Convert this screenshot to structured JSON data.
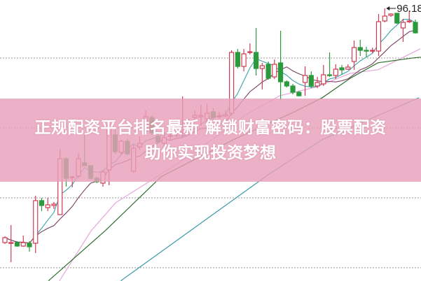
{
  "chart_data": {
    "type": "candlestick",
    "title": "",
    "xlabel": "",
    "ylabel": "",
    "ylim": [
      57.18,
      97.38
    ],
    "grid": {
      "on": true,
      "style": "dotted",
      "horizontal_values": [
        89.08,
        79.08,
        69.08,
        59.08
      ]
    },
    "colors": {
      "up": "#d23a52",
      "down": "#2b9a3c",
      "grid": "#999999"
    },
    "high_label": {
      "text": "96.18",
      "candle_index": 62
    },
    "candles": [
      [
        62.68,
        63.38,
        63.58,
        62.48
      ],
      [
        62.58,
        62.68,
        65.18,
        59.88
      ],
      [
        62.68,
        62.18,
        62.88,
        62.08
      ],
      [
        62.18,
        62.68,
        63.68,
        62.08
      ],
      [
        62.58,
        62.08,
        62.88,
        61.38
      ],
      [
        62.58,
        68.68,
        69.38,
        61.18
      ],
      [
        68.68,
        67.98,
        69.08,
        67.18
      ],
      [
        67.68,
        68.08,
        69.08,
        67.18
      ],
      [
        67.98,
        68.18,
        68.48,
        67.48
      ],
      [
        66.68,
        74.68,
        76.08,
        66.68
      ],
      [
        74.68,
        71.88,
        74.88,
        70.68
      ],
      [
        71.98,
        72.08,
        72.18,
        70.58
      ],
      [
        72.18,
        74.68,
        75.48,
        71.88
      ],
      [
        74.08,
        73.68,
        78.08,
        73.68
      ],
      [
        73.68,
        71.88,
        73.68,
        71.68
      ],
      [
        71.88,
        71.38,
        72.08,
        71.18
      ],
      [
        71.18,
        72.78,
        73.08,
        70.68
      ],
      [
        73.08,
        79.48,
        79.58,
        70.88
      ],
      [
        78.08,
        75.68,
        78.88,
        75.38
      ],
      [
        75.58,
        77.18,
        77.38,
        75.18
      ],
      [
        77.18,
        75.38,
        77.58,
        75.18
      ],
      [
        72.88,
        76.18,
        76.68,
        72.68
      ],
      [
        76.38,
        76.88,
        77.88,
        75.98
      ],
      [
        78.68,
        80.68,
        81.58,
        78.38
      ],
      [
        80.58,
        78.38,
        80.88,
        78.08
      ],
      [
        77.88,
        77.08,
        78.38,
        76.78
      ],
      [
        76.88,
        77.68,
        78.38,
        76.38
      ],
      [
        77.88,
        77.98,
        78.88,
        77.38
      ],
      [
        78.38,
        78.38,
        79.38,
        77.78
      ],
      [
        78.38,
        78.48,
        83.58,
        77.68
      ],
      [
        78.88,
        79.38,
        80.38,
        78.38
      ],
      [
        80.58,
        80.88,
        81.58,
        79.88
      ],
      [
        80.68,
        80.88,
        82.38,
        79.38
      ],
      [
        80.38,
        81.18,
        82.58,
        79.58
      ],
      [
        81.38,
        80.58,
        81.88,
        80.18
      ],
      [
        80.68,
        80.78,
        81.38,
        80.38
      ],
      [
        80.78,
        80.98,
        81.58,
        80.58
      ],
      [
        81.18,
        89.88,
        90.18,
        80.88
      ],
      [
        89.88,
        87.88,
        90.38,
        87.58
      ],
      [
        87.88,
        89.68,
        90.38,
        87.18
      ],
      [
        89.88,
        89.98,
        91.18,
        89.58
      ],
      [
        89.88,
        87.58,
        93.38,
        86.58
      ],
      [
        87.58,
        87.98,
        88.38,
        84.58
      ],
      [
        88.18,
        86.18,
        88.58,
        85.98
      ],
      [
        86.38,
        88.18,
        88.88,
        86.08
      ],
      [
        88.38,
        85.68,
        92.98,
        83.08
      ],
      [
        85.68,
        85.08,
        85.88,
        84.88
      ],
      [
        85.08,
        84.18,
        85.38,
        83.88
      ],
      [
        84.18,
        83.68,
        84.38,
        83.58
      ],
      [
        85.58,
        86.58,
        87.88,
        83.68
      ],
      [
        86.58,
        85.08,
        87.18,
        84.78
      ],
      [
        85.08,
        85.58,
        86.38,
        84.78
      ],
      [
        85.38,
        86.68,
        88.08,
        85.08
      ],
      [
        86.68,
        86.58,
        89.88,
        86.38
      ],
      [
        86.58,
        87.48,
        88.18,
        86.08
      ],
      [
        87.68,
        87.38,
        88.08,
        86.68
      ],
      [
        87.48,
        87.78,
        88.18,
        87.38
      ],
      [
        88.58,
        90.58,
        91.58,
        87.38
      ],
      [
        90.58,
        90.18,
        91.68,
        89.38
      ],
      [
        90.18,
        90.08,
        90.68,
        89.18
      ],
      [
        90.08,
        90.18,
        90.58,
        89.78
      ],
      [
        90.08,
        94.28,
        95.38,
        89.38
      ],
      [
        94.38,
        95.08,
        96.18,
        94.18
      ],
      [
        95.18,
        95.38,
        95.48,
        94.98
      ],
      [
        95.48,
        94.08,
        95.48,
        93.98
      ],
      [
        93.38,
        94.18,
        94.68,
        91.38
      ],
      [
        94.28,
        94.38,
        95.88,
        94.08
      ],
      [
        94.18,
        92.68,
        94.58,
        92.58
      ]
    ],
    "candle_format": [
      "open",
      "close",
      "high",
      "low"
    ],
    "moving_averages": [
      {
        "period": 5,
        "color": "#3aa3a8"
      },
      {
        "period": 10,
        "color": "#7b3c62"
      }
    ],
    "long_lines": [
      {
        "color": "#e6a6dc",
        "points": [
          [
            8.9,
            57.2
          ],
          [
            14.1,
            64.4
          ],
          [
            18.1,
            68.4
          ],
          [
            23.2,
            71.2
          ],
          [
            28.9,
            74.4
          ],
          [
            34.6,
            77.9
          ],
          [
            39.2,
            80.9
          ],
          [
            44.9,
            83.7
          ],
          [
            50.7,
            84.9
          ],
          [
            56.4,
            86.9
          ],
          [
            60.9,
            87.4
          ],
          [
            67.8,
            90.4
          ]
        ]
      },
      {
        "color": "#2e6e2e",
        "points": [
          [
            7.1,
            57.2
          ],
          [
            16.4,
            64.4
          ],
          [
            25.5,
            72.1
          ],
          [
            37.3,
            77.4
          ],
          [
            47.3,
            81.4
          ],
          [
            51.8,
            83.4
          ],
          [
            56.4,
            86.2
          ],
          [
            60.9,
            88.4
          ],
          [
            66.7,
            89.1
          ],
          [
            67.9,
            89.2
          ]
        ]
      },
      {
        "color": "#3a9aa6",
        "points": [
          [
            18.9,
            57.2
          ],
          [
            43.0,
            72.4
          ],
          [
            51.8,
            77.4
          ],
          [
            67.6,
            83.4
          ]
        ]
      }
    ]
  },
  "banner": {
    "line1": "正规配资平台排名最新 解锁财富密码：股票配资",
    "line2": "助你实现投资梦想",
    "color": "#e8a0b9"
  }
}
